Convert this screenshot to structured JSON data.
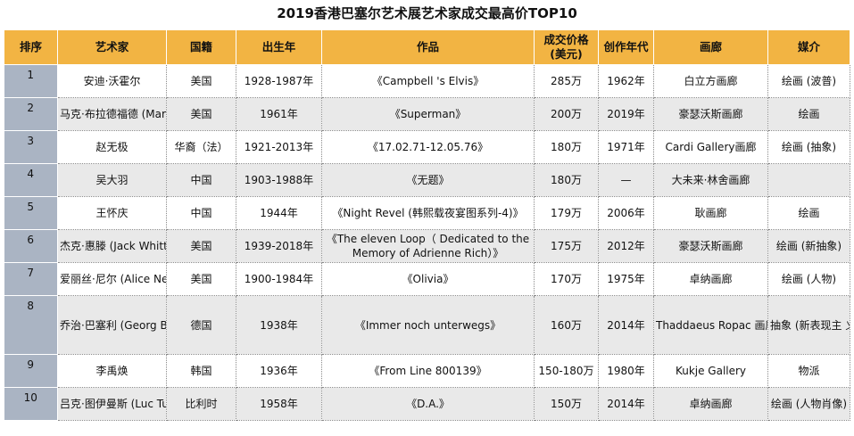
{
  "title": "2019香港巴塞尔艺术展艺术家成交最高价TOP10",
  "columns": [
    "排序",
    "艺术家",
    "国籍",
    "出生年",
    "作品",
    "成交价格\n(美元)",
    "创作年代",
    "画廊",
    "媒介"
  ],
  "rows": [
    {
      "rank": "1",
      "artist": "安迪·沃霍尔",
      "nationality": "美国",
      "born": "1928-1987年",
      "work": "《Campbell 's Elvis》",
      "price": "285万",
      "year": "1962年",
      "gallery": "白立方画廊",
      "medium": "绘画\n(波普)"
    },
    {
      "rank": "2",
      "artist": "马克·布拉德福德\n(Mark Bradford)",
      "nationality": "美国",
      "born": "1961年",
      "work": "《Superman》",
      "price": "200万",
      "year": "2019年",
      "gallery": "豪瑟沃斯画廊",
      "medium": "绘画"
    },
    {
      "rank": "3",
      "artist": "赵无极",
      "nationality": "华裔（法）",
      "born": "1921-2013年",
      "work": "《17.02.71-12.05.76》",
      "price": "180万",
      "year": "1971年",
      "gallery": "Cardi Gallery画廊",
      "medium": "绘画\n(抽象)"
    },
    {
      "rank": "4",
      "artist": "吴大羽",
      "nationality": "中国",
      "born": "1903-1988年",
      "work": "《无题》",
      "price": "180万",
      "year": "—",
      "gallery": "大未来·林舍画廊",
      "medium": ""
    },
    {
      "rank": "5",
      "artist": "王怀庆",
      "nationality": "中国",
      "born": "1944年",
      "work": "《Night Revel (韩熙载夜宴图系列-4)》",
      "price": "179万",
      "year": "2006年",
      "gallery": "耿画廊",
      "medium": "绘画"
    },
    {
      "rank": "6",
      "artist": "杰克·惠滕\n(Jack Whitten)",
      "nationality": "美国",
      "born": "1939-2018年",
      "work": "《The eleven Loop（ Dedicated to the\nMemory of Adrienne Rich）》",
      "price": "175万",
      "year": "2012年",
      "gallery": "豪瑟沃斯画廊",
      "medium": "绘画\n(新抽象)"
    },
    {
      "rank": "7",
      "artist": "爱丽丝·尼尔\n(Alice Neel)",
      "nationality": "美国",
      "born": "1900-1984年",
      "work": "《Olivia》",
      "price": "170万",
      "year": "1975年",
      "gallery": "卓纳画廊",
      "medium": "绘画\n(人物)"
    },
    {
      "rank": "8",
      "artist": "乔治·巴塞利\n(Georg Baselitz)",
      "nationality": "德国",
      "born": "1938年",
      "work": "《Immer noch unterwegs》",
      "price": "160万",
      "year": "2014年",
      "gallery": "Thaddaeus Ropac\n画廊",
      "medium": "抽象\n(新表现主\n义)"
    },
    {
      "rank": "9",
      "artist": "李禹焕",
      "nationality": "韩国",
      "born": "1936年",
      "work": "《From Line 800139》",
      "price": "150-180万",
      "year": "1980年",
      "gallery": "Kukje Gallery",
      "medium": "物派"
    },
    {
      "rank": "10",
      "artist": "吕克·图伊曼斯\n(Luc Tuymans)",
      "nationality": "比利时",
      "born": "1958年",
      "work": "《D.A.》",
      "price": "150万",
      "year": "2014年",
      "gallery": "卓纳画廊",
      "medium": "绘画\n(人物肖像)"
    }
  ],
  "colors": {
    "header_bg": "#f2b443",
    "rank_bg": "#aab4c3",
    "shade_row_bg": "#e9e9e9"
  }
}
